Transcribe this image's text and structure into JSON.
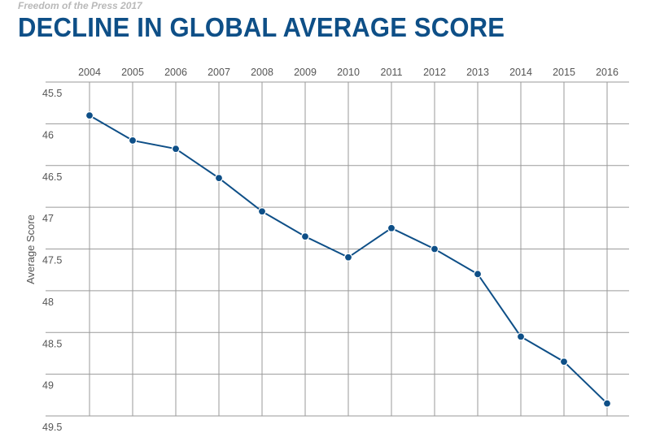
{
  "header": {
    "kicker": "Freedom of the Press 2017",
    "title": "DECLINE IN GLOBAL AVERAGE SCORE"
  },
  "colors": {
    "title": "#0e4f87",
    "series": "#0e4f87",
    "grid": "#9a9a9a",
    "tick_text": "#555555"
  },
  "chart_data": {
    "type": "line",
    "title": "DECLINE IN GLOBAL AVERAGE SCORE",
    "xlabel": "",
    "ylabel": "Average Score",
    "x": [
      "2004",
      "2005",
      "2006",
      "2007",
      "2008",
      "2009",
      "2010",
      "2011",
      "2012",
      "2013",
      "2014",
      "2015",
      "2016"
    ],
    "series": [
      {
        "values": [
          45.9,
          46.2,
          46.3,
          46.65,
          47.05,
          47.35,
          47.6,
          47.25,
          47.5,
          47.8,
          48.55,
          48.85,
          49.35
        ]
      }
    ],
    "ylim": [
      45.5,
      49.5
    ],
    "y_inverted": true,
    "yticks": [
      "45.5",
      "46",
      "46.5",
      "47",
      "47.5",
      "48",
      "48.5",
      "49",
      "49.5"
    ],
    "x_axis_position": "top",
    "grid": true,
    "legend": "none"
  }
}
